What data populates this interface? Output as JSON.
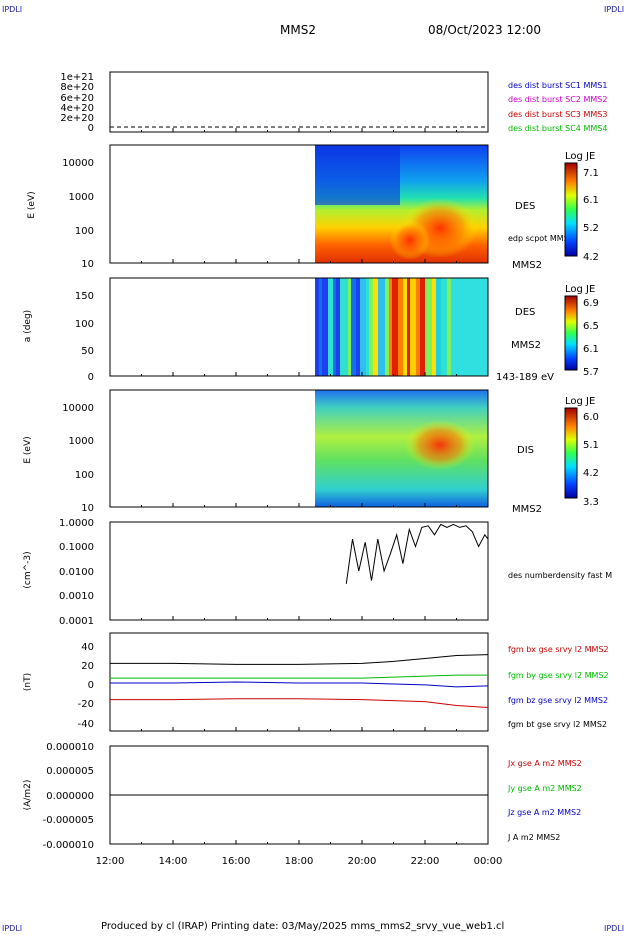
{
  "corners": {
    "top_left": "IPDLI",
    "top_right": "IPDLI",
    "bottom_left": "IPDLI",
    "bottom_right": "IPDLI"
  },
  "header": {
    "spacecraft": "MMS2",
    "datetime": "08/Oct/2023 12:00"
  },
  "footer": {
    "text": "Produced by cl (IRAP)   Printing date: 03/May/2025   mms_mms2_srvy_vue_web1.cl"
  },
  "colors": {
    "blue": "#0000cc",
    "magenta": "#cc00cc",
    "red": "#cc0000",
    "green": "#00bb00",
    "black": "#000000"
  },
  "xaxis": {
    "ticks": [
      "12:00",
      "14:00",
      "16:00",
      "18:00",
      "20:00",
      "22:00",
      "00:00"
    ]
  },
  "panels": {
    "p1": {
      "yticks": [
        "1e+21",
        "8e+20",
        "6e+20",
        "4e+20",
        "2e+20",
        "0"
      ],
      "legend": [
        {
          "text": "des dist burst SC1 MMS1",
          "color": "#0000cc"
        },
        {
          "text": "des dist burst SC2 MMS2",
          "color": "#cc00cc"
        },
        {
          "text": "des dist burst SC3 MMS3",
          "color": "#cc0000"
        },
        {
          "text": "des dist burst SC4 MMS4",
          "color": "#00bb00"
        }
      ]
    },
    "p2": {
      "ylabel": "E (eV)",
      "yticks": [
        "10000",
        "1000",
        "100",
        "10"
      ],
      "right_label": "DES",
      "annotation": "edp scpot MMS2",
      "bottom_right": "MMS2",
      "cb_title": "Log JE",
      "cb_ticks": [
        "7.1",
        "6.1",
        "5.2",
        "4.2"
      ]
    },
    "p3": {
      "ylabel": "a (deg)",
      "yticks": [
        "150",
        "100",
        "50",
        "0"
      ],
      "right_label": "DES",
      "right_label2": "MMS2",
      "bottom_right": "143-189 eV",
      "cb_title": "Log JE",
      "cb_ticks": [
        "6.9",
        "6.5",
        "6.1",
        "5.7"
      ]
    },
    "p4": {
      "ylabel": "E (eV)",
      "yticks": [
        "10000",
        "1000",
        "100",
        "10"
      ],
      "right_label": "DIS",
      "bottom_right": "MMS2",
      "cb_title": "Log JE",
      "cb_ticks": [
        "6.0",
        "5.1",
        "4.2",
        "3.3"
      ]
    },
    "p5": {
      "ylabel": "(cm^-3)",
      "yticks": [
        "1.0000",
        "0.1000",
        "0.0100",
        "0.0010",
        "0.0001"
      ],
      "legend": "des numberdensity fast M"
    },
    "p6": {
      "ylabel": "(nT)",
      "yticks": [
        "40",
        "20",
        "0",
        "-20",
        "-40"
      ],
      "legend": [
        {
          "text": "fgm bx gse srvy l2 MMS2",
          "color": "#cc0000"
        },
        {
          "text": "fgm by gse srvy l2 MMS2",
          "color": "#00bb00"
        },
        {
          "text": "fgm bz gse srvy l2 MMS2",
          "color": "#0000cc"
        },
        {
          "text": "fgm bt gse srvy l2 MMS2",
          "color": "#000000"
        }
      ]
    },
    "p7": {
      "ylabel": "(A/m2)",
      "yticks": [
        "0.000010",
        "0.000005",
        "0.000000",
        "-0.000005",
        "-0.000010"
      ],
      "legend": [
        {
          "text": "Jx gse A m2 MMS2",
          "color": "#cc0000"
        },
        {
          "text": "Jy gse A m2 MMS2",
          "color": "#00bb00"
        },
        {
          "text": "Jz gse A m2 MMS2",
          "color": "#0000cc"
        },
        {
          "text": "J A m2 MMS2",
          "color": "#000000"
        }
      ]
    }
  },
  "chart_data": [
    {
      "type": "line",
      "ylim": [
        0,
        1.1e+21
      ],
      "note": "burst availability flags all zero",
      "x": [
        "12:00",
        "00:00"
      ],
      "values": [
        0,
        0
      ]
    },
    {
      "type": "heatmap",
      "ylabel": "E (eV)",
      "y_scale": "log",
      "ylim": [
        10,
        30000
      ],
      "x_range": [
        "12:00",
        "00:00"
      ],
      "data_start": "18:30",
      "colorbar": {
        "title": "Log JE",
        "min": 4.2,
        "max": 7.1
      }
    },
    {
      "type": "heatmap",
      "ylabel": "a (deg)",
      "ylim": [
        0,
        180
      ],
      "x_range": [
        "12:00",
        "00:00"
      ],
      "data_start": "18:30",
      "colorbar": {
        "title": "Log JE",
        "min": 5.7,
        "max": 6.9
      }
    },
    {
      "type": "heatmap",
      "ylabel": "E (eV)",
      "y_scale": "log",
      "ylim": [
        10,
        30000
      ],
      "x_range": [
        "12:00",
        "00:00"
      ],
      "data_start": "18:30",
      "colorbar": {
        "title": "Log JE",
        "min": 3.3,
        "max": 6.0
      }
    },
    {
      "type": "line",
      "ylabel": "(cm^-3)",
      "y_scale": "log",
      "ylim": [
        0.0001,
        1.0
      ],
      "x": [
        19.5,
        19.7,
        19.9,
        20.1,
        20.3,
        20.5,
        20.7,
        20.9,
        21.1,
        21.3,
        21.5,
        21.7,
        21.9,
        22.1,
        22.3,
        22.5,
        22.7,
        22.9,
        23.1,
        23.3,
        23.5,
        23.7,
        23.9,
        24.0
      ],
      "values": [
        0.003,
        0.2,
        0.01,
        0.15,
        0.004,
        0.2,
        0.01,
        0.05,
        0.3,
        0.02,
        0.5,
        0.1,
        0.6,
        0.7,
        0.3,
        0.8,
        0.6,
        0.8,
        0.6,
        0.7,
        0.4,
        0.1,
        0.3,
        0.2
      ]
    },
    {
      "type": "line",
      "ylabel": "(nT)",
      "ylim": [
        -50,
        50
      ],
      "x": [
        12,
        14,
        16,
        18,
        20,
        21,
        22,
        23,
        24
      ],
      "series": [
        {
          "name": "fgm bx gse srvy l2 MMS2",
          "values": [
            -18,
            -18,
            -17,
            -17,
            -18,
            -19,
            -20,
            -24,
            -26
          ]
        },
        {
          "name": "fgm by gse srvy l2 MMS2",
          "values": [
            4,
            4,
            4,
            4,
            4,
            5,
            6,
            7,
            7
          ]
        },
        {
          "name": "fgm bz gse srvy l2 MMS2",
          "values": [
            -1,
            -1,
            0,
            -1,
            -1,
            -2,
            -3,
            -5,
            -4
          ]
        },
        {
          "name": "fgm bt gse srvy l2 MMS2",
          "values": [
            19,
            19,
            18,
            18,
            19,
            21,
            24,
            27,
            28
          ]
        }
      ]
    },
    {
      "type": "line",
      "ylabel": "(A/m2)",
      "ylim": [
        -1e-05,
        1e-05
      ],
      "x": [
        12,
        24
      ],
      "values": [
        0,
        0
      ]
    }
  ]
}
